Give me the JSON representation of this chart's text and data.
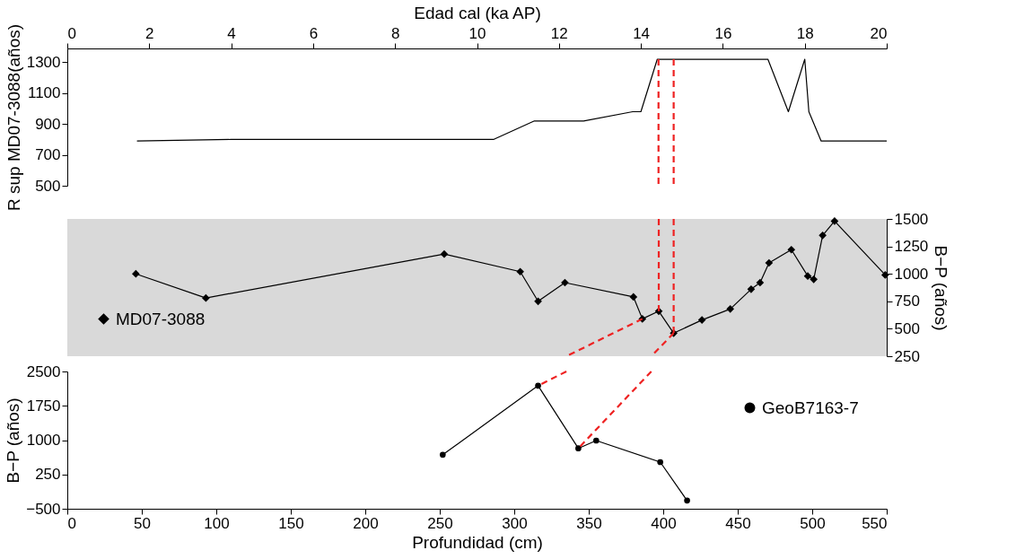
{
  "chart_data": [
    {
      "type": "line",
      "xlabel": "Edad cal (ka AP)",
      "ylabel": "R sup MD07-3088(años)",
      "xlim": [
        0,
        20
      ],
      "xticks": [
        0,
        2,
        4,
        6,
        8,
        10,
        12,
        14,
        16,
        18,
        20
      ],
      "ylim": [
        500,
        1390
      ],
      "yticks": [
        500,
        700,
        900,
        1100,
        1300
      ],
      "grid": false,
      "series": [
        {
          "color": "#000000",
          "marker": "none",
          "line_style": "solid",
          "x": [
            1.7,
            4,
            10.4,
            11.4,
            12.6,
            13.8,
            14.0,
            14.4,
            17.1,
            17.6,
            18.0,
            18.1,
            18.4,
            20
          ],
          "values": [
            790,
            800,
            800,
            920,
            920,
            980,
            980,
            1320,
            1320,
            980,
            1320,
            980,
            790,
            790
          ]
        },
        {
          "color": "#ee2222",
          "marker": "none",
          "line_style": "dashed",
          "x": [
            14.43,
            14.43
          ],
          "values": [
            1320,
            500
          ]
        },
        {
          "color": "#ee2222",
          "marker": "none",
          "line_style": "dashed",
          "x": [
            14.8,
            14.8
          ],
          "values": [
            1320,
            500
          ]
        }
      ]
    },
    {
      "type": "line",
      "y2label": "B−P (años)",
      "xlim": [
        0,
        550
      ],
      "y2lim": [
        250,
        1500
      ],
      "y2ticks": [
        250,
        500,
        750,
        1000,
        1250,
        1500
      ],
      "tick_labels": "y",
      "grid": false,
      "legend": "bottom left",
      "bands": [
        {
          "axis": "y2",
          "from": 250,
          "to": 1500,
          "color": "#d9d9d9"
        }
      ],
      "series": [
        {
          "name": "MD07-3088",
          "axis": "y2",
          "color": "#000000",
          "marker": "diamond",
          "line_style": "solid",
          "x": [
            46,
            93,
            253,
            304,
            316,
            334,
            380,
            386,
            397,
            407,
            426,
            445,
            459,
            465,
            471,
            486,
            497,
            501,
            507,
            515,
            549
          ],
          "values": [
            1000,
            780,
            1180,
            1020,
            750,
            920,
            790,
            590,
            660,
            460,
            580,
            680,
            860,
            920,
            1100,
            1220,
            980,
            950,
            1350,
            1480,
            990
          ]
        },
        {
          "axis": "y2",
          "color": "#ee2222",
          "marker": "none",
          "line_style": "dashed",
          "x": [
            397,
            397
          ],
          "values": [
            1500,
            660
          ]
        },
        {
          "axis": "y2",
          "color": "#ee2222",
          "marker": "none",
          "line_style": "dashed",
          "x": [
            407,
            407
          ],
          "values": [
            1500,
            460
          ]
        },
        {
          "axis": "y2",
          "color": "#ee2222",
          "marker": "none",
          "line_style": "dashed",
          "x": [
            386,
            335
          ],
          "values": [
            590,
            250
          ]
        },
        {
          "axis": "y2",
          "color": "#ee2222",
          "marker": "none",
          "line_style": "dashed",
          "x": [
            407,
            392
          ],
          "values": [
            460,
            250
          ]
        }
      ]
    },
    {
      "type": "line",
      "xlabel": "Profundidad (cm)",
      "ylabel": "B−P (años)",
      "xlim": [
        0,
        550
      ],
      "xticks": [
        0,
        50,
        100,
        150,
        200,
        250,
        300,
        350,
        400,
        450,
        500,
        550
      ],
      "ylim": [
        -500,
        2500
      ],
      "yticks": [
        -500,
        250,
        1000,
        1750,
        2500
      ],
      "grid": false,
      "legend": "top right",
      "series": [
        {
          "name": "GeoB7163-7",
          "color": "#000000",
          "marker": "circle",
          "line_style": "solid",
          "x": [
            252,
            316,
            343,
            355,
            398,
            416
          ],
          "values": [
            680,
            2190,
            820,
            990,
            520,
            -320
          ]
        },
        {
          "color": "#ee2222",
          "marker": "none",
          "line_style": "dashed",
          "x": [
            335,
            316
          ],
          "values": [
            2500,
            2190
          ]
        },
        {
          "color": "#ee2222",
          "marker": "none",
          "line_style": "dashed",
          "x": [
            392,
            343
          ],
          "values": [
            2500,
            820
          ]
        }
      ]
    }
  ]
}
